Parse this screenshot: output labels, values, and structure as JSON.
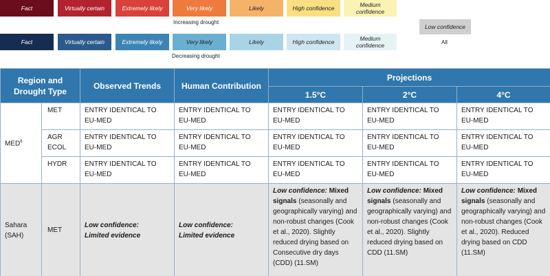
{
  "legend": {
    "increasing": {
      "chips": [
        {
          "label": "Fact",
          "color": "#6b0d1c",
          "text_color": "#ffffff"
        },
        {
          "label": "Virtually certain",
          "color": "#b2232f",
          "text_color": "#ffffff"
        },
        {
          "label": "Extremely likely",
          "color": "#d9413a",
          "text_color": "#ffffff"
        },
        {
          "label": "Very likely",
          "color": "#ef7a3d",
          "text_color": "#ffffff"
        },
        {
          "label": "Likely",
          "color": "#f5b36a",
          "text_color": "#222222"
        },
        {
          "label": "High confidence",
          "color": "#fadf82",
          "text_color": "#222222"
        },
        {
          "label": "Medium confidence",
          "color": "#fbf3b3",
          "text_color": "#222222"
        }
      ],
      "caption": "Increasing drought"
    },
    "decreasing": {
      "chips": [
        {
          "label": "Fact",
          "color": "#162d52",
          "text_color": "#ffffff"
        },
        {
          "label": "Virtually certain",
          "color": "#2b5a8c",
          "text_color": "#ffffff"
        },
        {
          "label": "Extremely likely",
          "color": "#3d84b4",
          "text_color": "#ffffff"
        },
        {
          "label": "Very likely",
          "color": "#6aafcf",
          "text_color": "#222222"
        },
        {
          "label": "Likely",
          "color": "#a9d4e6",
          "text_color": "#222222"
        },
        {
          "label": "High confidence",
          "color": "#cde6f0",
          "text_color": "#222222"
        },
        {
          "label": "Medium confidence",
          "color": "#e6f3f6",
          "text_color": "#222222"
        }
      ],
      "caption": "Decreasing drought"
    },
    "all": {
      "label": "Low confidence",
      "caption": "All"
    }
  },
  "table": {
    "headers": {
      "region": "Region and Drought Type",
      "observed": "Observed Trends",
      "human": "Human Contribution",
      "projections": "Projections",
      "p15": "1.5°C",
      "p2": "2°C",
      "p4": "4°C"
    },
    "med": {
      "region": "MED",
      "footnote": "6",
      "rows": [
        {
          "type": "MET",
          "obs": "ENTRY IDENTICAL TO EU-MED",
          "human": "ENTRY IDENTICAL TO EU-MED",
          "p15": "ENTRY IDENTICAL TO EU-MED",
          "p2": "ENTRY IDENTICAL TO EU-MED",
          "p4": "ENTRY IDENTICAL TO EU-MED"
        },
        {
          "type": "AGR ECOL",
          "obs": "ENTRY IDENTICAL TO EU-MED",
          "human": "ENTRY IDENTICAL TO EU-MED",
          "p15": "ENTRY IDENTICAL TO EU-MED",
          "p2": "ENTRY IDENTICAL TO EU-MED",
          "p4": "ENTRY IDENTICAL TO EU-MED"
        },
        {
          "type": "HYDR",
          "obs": "ENTRY IDENTICAL TO EU-MED",
          "human": "ENTRY IDENTICAL TO EU-MED",
          "p15": "ENTRY IDENTICAL TO EU-MED",
          "p2": "ENTRY IDENTICAL TO EU-MED",
          "p4": "ENTRY IDENTICAL TO EU-MED"
        }
      ]
    },
    "sahara": {
      "region": "Sahara (SAH)",
      "type": "MET",
      "obs_lead": "Low confidence:",
      "obs_rest": "Limited evidence",
      "human_lead": "Low confidence:",
      "human_rest": "Limited evidence",
      "p15_lead": "Low confidence:",
      "p15_bold": "Mixed signals",
      "p15_rest": "(seasonally and geographically varying) and non-robust changes (Cook et al., 2020). Slightly reduced drying based on Consecutive dry days (CDD) (11.SM)",
      "p2_lead": "Low confidence:",
      "p2_bold": "Mixed signals",
      "p2_rest": "(seasonally and geographically varying) and non-robust changes (Cook et al., 2020). Slightly reduced drying based on CDD (11.SM)",
      "p4_lead": "Low confidence:",
      "p4_bold": "Mixed signals",
      "p4_rest": "(seasonally and geographically varying) and non-robust changes (Cook et al., 2020). Reduced drying based on CDD (11.SM)"
    }
  }
}
